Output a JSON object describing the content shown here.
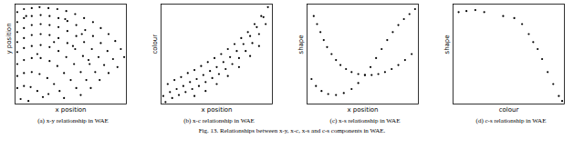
{
  "chart_data": [
    {
      "type": "scatter",
      "title": "(a) x-y relationship in WAE",
      "x_label": "x position",
      "y_label": "y position",
      "color": "#000000",
      "marker": "circle",
      "tick_labels": false,
      "xlim": [
        0,
        100
      ],
      "ylim": [
        0,
        100
      ],
      "xticks": [],
      "yticks": [],
      "x": [
        2,
        8,
        15,
        22,
        30,
        38,
        46,
        54,
        62,
        70,
        77,
        84,
        90,
        95,
        98,
        2,
        8,
        15,
        23,
        31,
        39,
        47,
        55,
        63,
        70,
        77,
        83,
        88,
        92,
        2,
        8,
        15,
        23,
        31,
        39,
        47,
        55,
        62,
        69,
        75,
        80,
        84,
        2,
        8,
        15,
        23,
        31,
        39,
        47,
        54,
        61,
        67,
        72,
        76,
        2,
        8,
        15,
        23,
        31,
        39,
        46,
        53,
        59,
        64,
        68,
        2,
        8,
        15,
        23,
        31,
        38,
        44,
        50,
        55,
        59,
        2,
        8,
        15,
        22,
        29,
        35,
        40,
        44,
        2,
        8,
        14,
        20,
        25,
        5,
        12,
        30,
        60,
        45,
        20,
        35,
        52,
        66,
        10
      ],
      "y": [
        92,
        95,
        96,
        97,
        96,
        95,
        93,
        90,
        86,
        82,
        76,
        70,
        63,
        55,
        47,
        82,
        86,
        88,
        89,
        88,
        86,
        83,
        79,
        74,
        68,
        61,
        53,
        45,
        37,
        72,
        76,
        79,
        80,
        79,
        77,
        73,
        68,
        62,
        55,
        47,
        39,
        31,
        62,
        66,
        69,
        70,
        69,
        66,
        61,
        55,
        48,
        40,
        32,
        24,
        52,
        56,
        58,
        59,
        57,
        53,
        47,
        40,
        32,
        24,
        16,
        40,
        44,
        46,
        46,
        43,
        38,
        31,
        24,
        16,
        9,
        28,
        31,
        32,
        30,
        26,
        20,
        13,
        6,
        16,
        18,
        17,
        13,
        7,
        5,
        3,
        10,
        70,
        85,
        50,
        62,
        58,
        44,
        88
      ]
    },
    {
      "type": "scatter",
      "title": "(b) x-c relationship in WAE",
      "x_label": "x position",
      "y_label": "colour",
      "color": "#000000",
      "marker": "circle",
      "tick_labels": false,
      "xlim": [
        0,
        100
      ],
      "ylim": [
        0,
        100
      ],
      "xticks": [],
      "yticks": [],
      "x": [
        2,
        8,
        14,
        20,
        26,
        32,
        38,
        44,
        50,
        56,
        62,
        68,
        74,
        80,
        86,
        92,
        96,
        4,
        10,
        16,
        22,
        28,
        34,
        40,
        46,
        52,
        58,
        64,
        70,
        76,
        82,
        88,
        94,
        6,
        12,
        18,
        24,
        30,
        36,
        42,
        48,
        54,
        60,
        66,
        72,
        78,
        84,
        90,
        30,
        40,
        50,
        60,
        70,
        80,
        88
      ],
      "y": [
        8,
        12,
        15,
        18,
        22,
        25,
        29,
        33,
        37,
        42,
        47,
        53,
        60,
        68,
        77,
        87,
        97,
        2,
        6,
        9,
        12,
        15,
        18,
        22,
        26,
        30,
        35,
        40,
        46,
        53,
        61,
        70,
        80,
        20,
        24,
        27,
        31,
        34,
        38,
        42,
        46,
        50,
        55,
        60,
        66,
        72,
        80,
        88,
        8,
        13,
        20,
        28,
        37,
        48,
        58
      ]
    },
    {
      "type": "scatter",
      "title": "(c) x-s relationship in WAE",
      "x_label": "x position",
      "y_label": "shape",
      "color": "#000000",
      "marker": "circle",
      "tick_labels": false,
      "xlim": [
        0,
        100
      ],
      "ylim": [
        0,
        100
      ],
      "xticks": [],
      "yticks": [],
      "x": [
        6,
        9,
        12,
        15,
        18,
        22,
        26,
        30,
        35,
        40,
        46,
        52,
        58,
        64,
        70,
        76,
        82,
        88,
        94,
        4,
        8,
        13,
        19,
        26,
        33,
        40,
        46,
        52,
        57,
        62,
        67,
        72,
        77,
        82,
        87,
        92,
        97
      ],
      "y": [
        88,
        80,
        72,
        64,
        57,
        50,
        44,
        39,
        35,
        32,
        30,
        29,
        29,
        30,
        32,
        35,
        39,
        44,
        50,
        25,
        18,
        13,
        10,
        9,
        11,
        15,
        21,
        29,
        37,
        46,
        55,
        64,
        72,
        79,
        85,
        90,
        95
      ]
    },
    {
      "type": "scatter",
      "title": "(d) c-s relationship in WAE",
      "x_label": "colour",
      "y_label": "shape",
      "color": "#000000",
      "marker": "circle",
      "tick_labels": false,
      "xlim": [
        0,
        100
      ],
      "ylim": [
        0,
        100
      ],
      "xticks": [],
      "yticks": [],
      "x": [
        5,
        12,
        20,
        28,
        45,
        55,
        62,
        68,
        72,
        76,
        80,
        85,
        90,
        95,
        98
      ],
      "y": [
        92,
        93,
        94,
        92,
        88,
        86,
        80,
        70,
        62,
        55,
        45,
        32,
        20,
        8,
        3
      ]
    }
  ],
  "caption": "Fig. 13. Relationships between x-y, x-c, x-s and c-s components in WAE."
}
